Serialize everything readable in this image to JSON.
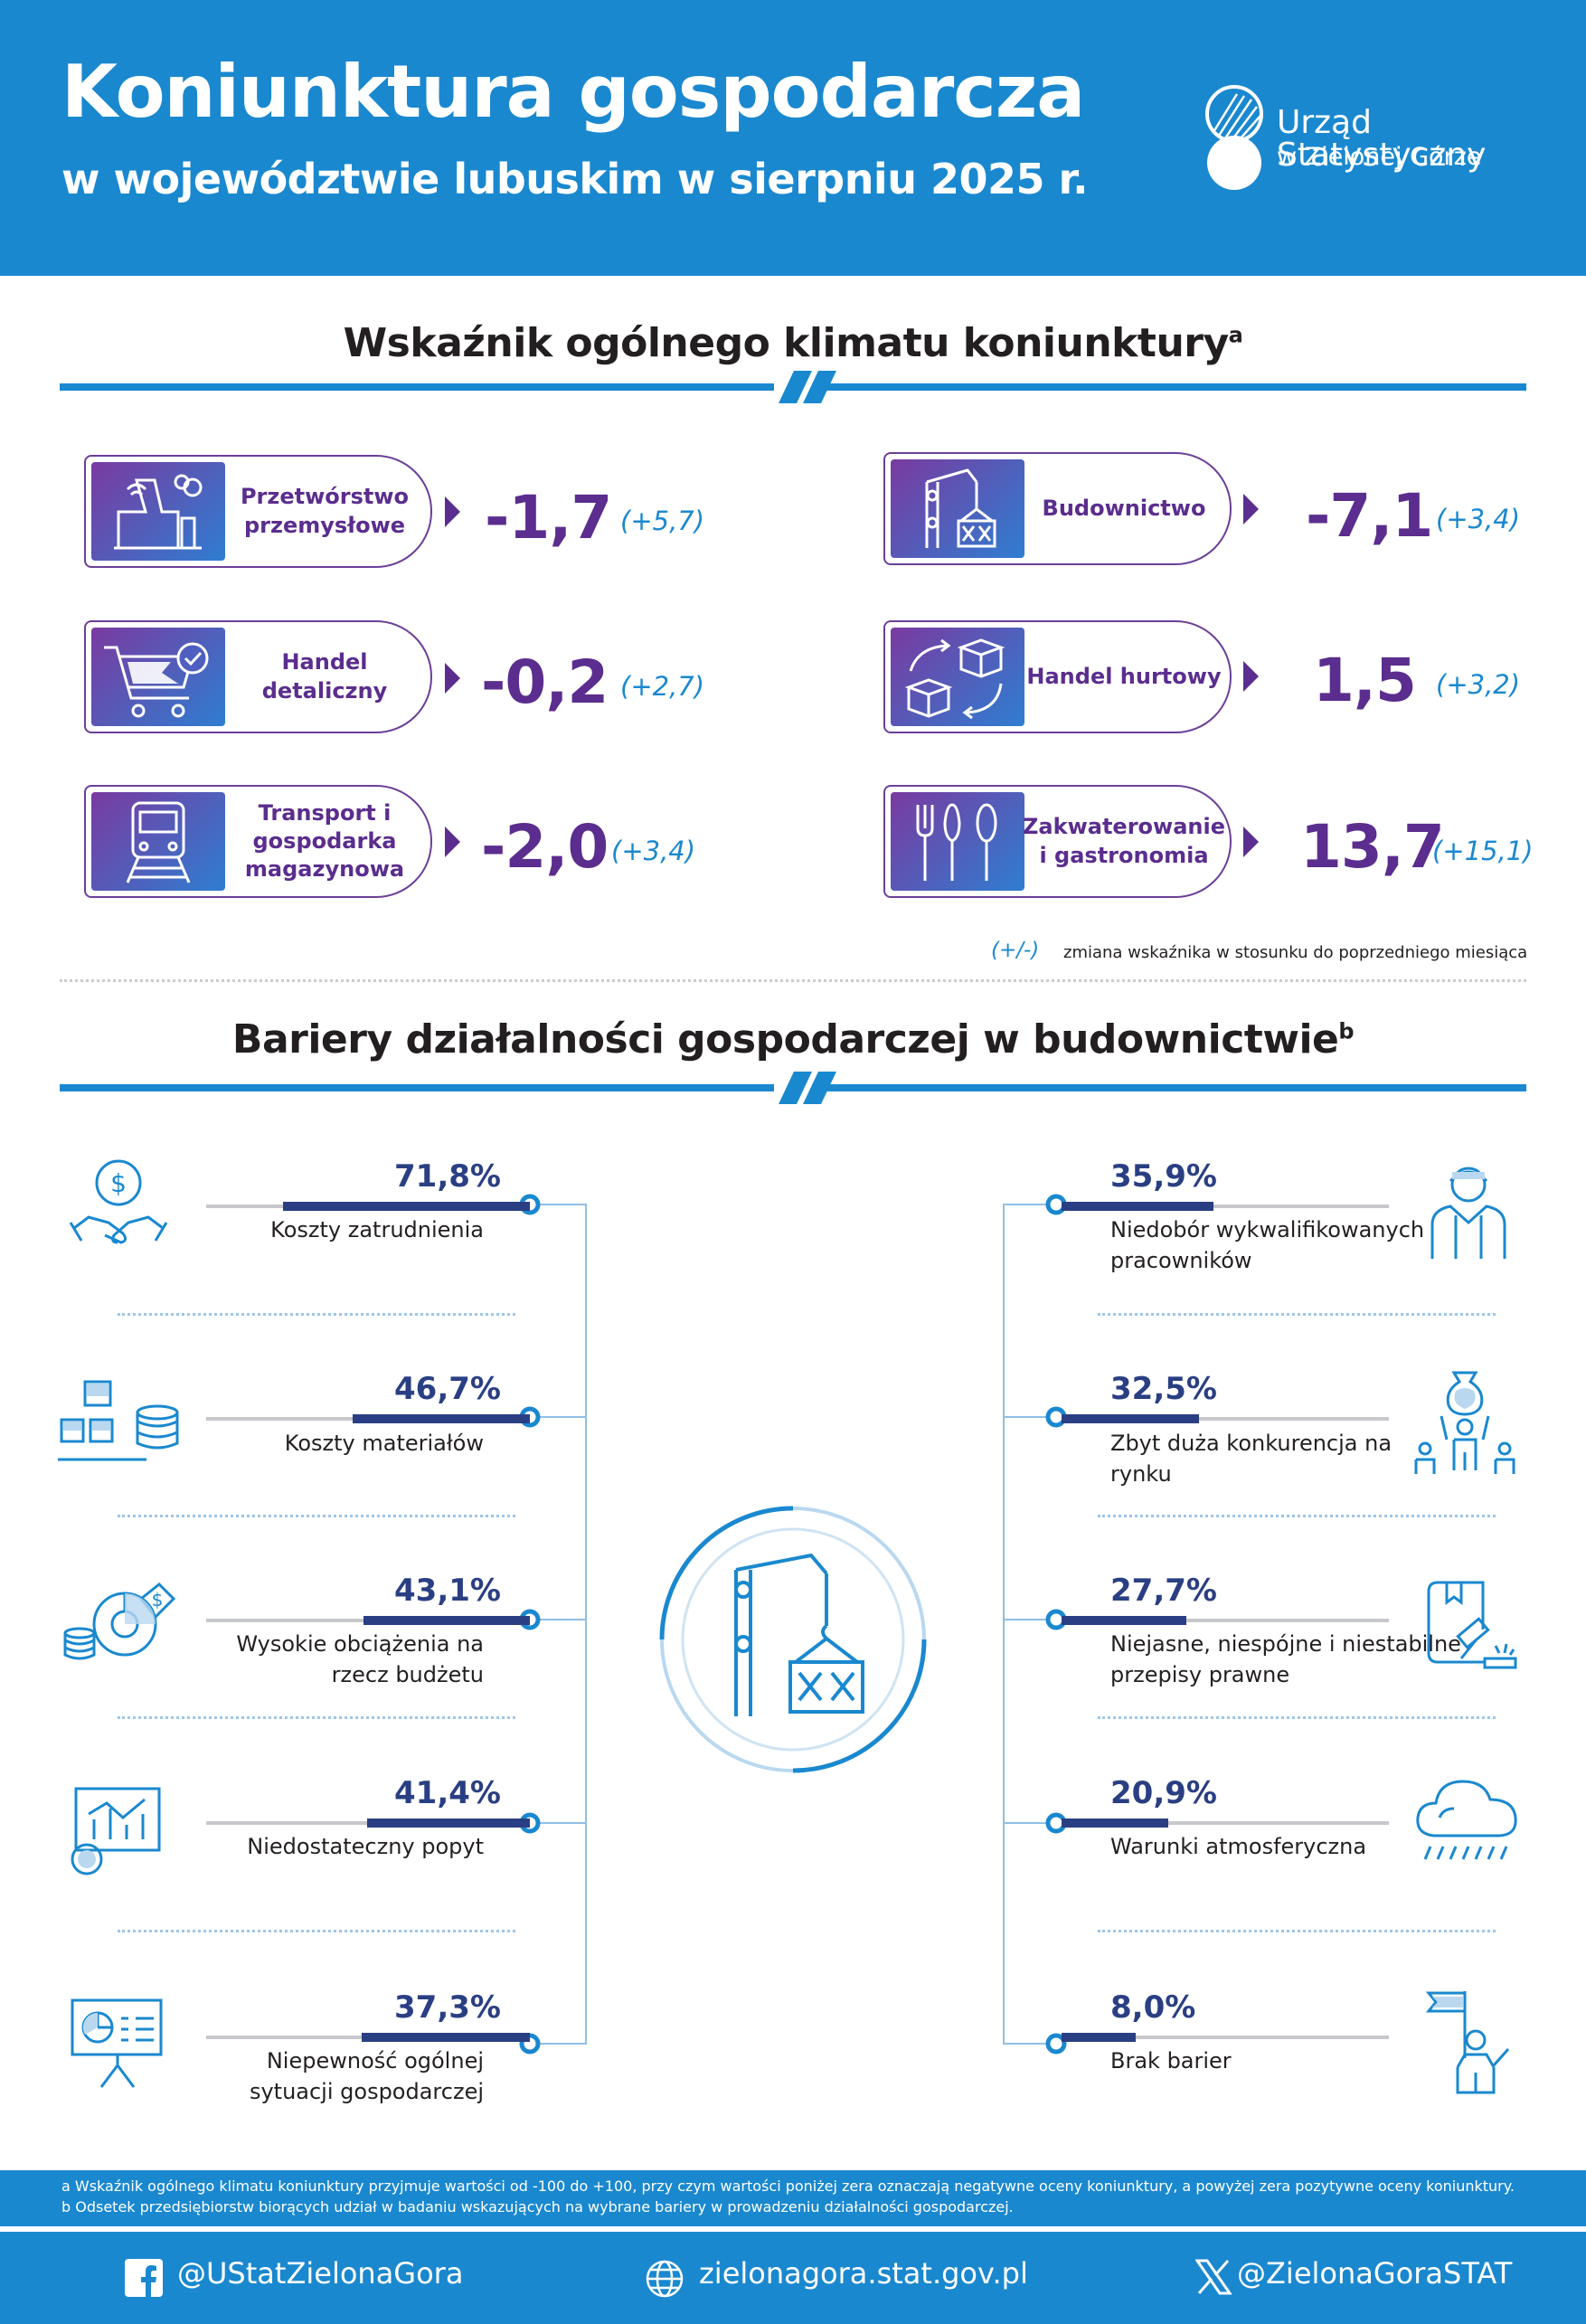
{
  "header": {
    "title": "Koniunktura gospodarcza",
    "subtitle": "w województwie lubuskim w sierpniu 2025 r.",
    "logo_line1": "Urząd Statystyczny",
    "logo_line2": "w Zielonej Górze"
  },
  "section1": {
    "title": "Wskaźnik ogólnego klimatu koniunktury",
    "sup": "a",
    "indicators": [
      {
        "label": "Przetwórstwo przemysłowe",
        "value": "-1,7",
        "change": "(+5,7)",
        "icon": "factory-icon"
      },
      {
        "label": "Budownictwo",
        "value": "-7,1",
        "change": "(+3,4)",
        "icon": "crane-icon"
      },
      {
        "label": "Handel detaliczny",
        "value": "-0,2",
        "change": "(+2,7)",
        "icon": "shopping-cart-icon"
      },
      {
        "label": "Handel hurtowy",
        "value": "1,5",
        "change": "(+3,2)",
        "icon": "boxes-exchange-icon"
      },
      {
        "label": "Transport i gospodarka magazynowa",
        "value": "-2,0",
        "change": "(+3,4)",
        "icon": "train-icon"
      },
      {
        "label": "Zakwaterowanie i gastronomia",
        "value": "13,7",
        "change": "(+15,1)",
        "icon": "cutlery-icon"
      }
    ],
    "legend_symbol": "(+/-)",
    "legend_text": "zmiana wskaźnika w stosunku do poprzedniego miesiąca"
  },
  "section2": {
    "title": "Bariery działalności gospodarczej w budownictwie",
    "sup": "b",
    "left": [
      {
        "pct": "71,8%",
        "value": 71.8,
        "label": "Koszty zatrudnienia",
        "icon": "handshake-money-icon"
      },
      {
        "pct": "46,7%",
        "value": 46.7,
        "label": "Koszty materiałów",
        "icon": "materials-coins-icon"
      },
      {
        "pct": "43,1%",
        "value": 43.1,
        "label": "Wysokie obciążenia na rzecz budżetu",
        "icon": "pie-chart-coins-icon"
      },
      {
        "pct": "41,4%",
        "value": 41.4,
        "label": "Niedostateczny popyt",
        "icon": "presentation-chart-icon"
      },
      {
        "pct": "37,3%",
        "value": 37.3,
        "label": "Niepewność ogólnej sytuacji gospodarczej",
        "icon": "board-pie-icon"
      }
    ],
    "right": [
      {
        "pct": "35,9%",
        "value": 35.9,
        "label": "Niedobór wykwalifikowanych pracowników",
        "icon": "worker-icon"
      },
      {
        "pct": "32,5%",
        "value": 32.5,
        "label": "Zbyt duża konkurencja na rynku",
        "icon": "competition-icon"
      },
      {
        "pct": "27,7%",
        "value": 27.7,
        "label": "Niejasne, niespójne i niestabilne przepisy prawne",
        "icon": "law-gavel-icon"
      },
      {
        "pct": "20,9%",
        "value": 20.9,
        "label": "Warunki atmosferyczna",
        "icon": "rain-cloud-icon"
      },
      {
        "pct": "8,0%",
        "value": 8.0,
        "label": "Brak barier",
        "icon": "flag-person-icon"
      }
    ]
  },
  "footnotes": {
    "a": "a Wskaźnik ogólnego klimatu koniunktury przyjmuje wartości od -100 do +100, przy czym wartości poniżej zera oznaczają negatywne oceny koniunktury, a powyżej zera pozytywne oceny koniunktury.",
    "b": "b Odsetek przedsiębiorstw biorących udział w badaniu wskazujących na wybrane bariery w prowadzeniu działalności gospodarczej."
  },
  "footer": {
    "facebook": "@UStatZielonaGora",
    "website": "zielonagora.stat.gov.pl",
    "x": "@ZielonaGoraSTAT"
  },
  "colors": {
    "primary": "#1a88cf",
    "purple": "#5b2d8e",
    "navy": "#2a3f83"
  }
}
